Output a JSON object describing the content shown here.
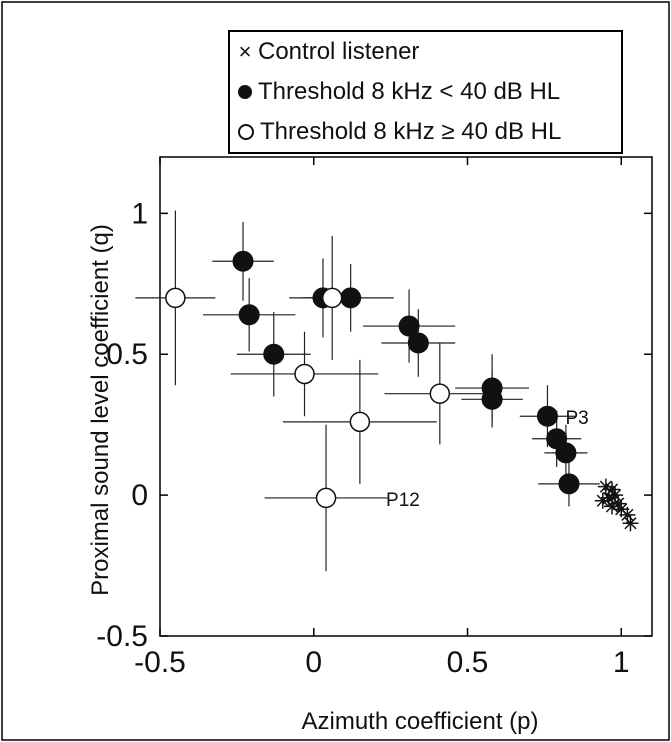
{
  "chart_data": {
    "type": "scatter",
    "title": "",
    "xlabel": "Azimuth coefficient (p)",
    "ylabel": "Proximal sound level coefficient (q)",
    "xlim": [
      -0.5,
      1.1
    ],
    "ylim": [
      -0.5,
      1.2
    ],
    "x_ticks": [
      -0.5,
      0,
      0.5,
      1
    ],
    "y_ticks": [
      -0.5,
      0,
      0.5,
      1
    ],
    "x_tick_labels": [
      "-0.5",
      "0",
      "0.5",
      "1"
    ],
    "y_tick_labels": [
      "-0.5",
      "0",
      "0.5",
      "1"
    ],
    "grid": false,
    "legend_placement": "top",
    "legend": [
      {
        "symbol": "×",
        "marker": "x",
        "label": "Control listener"
      },
      {
        "symbol": "●",
        "marker": "filled",
        "label": "Threshold 8 kHz < 40 dB HL"
      },
      {
        "symbol": "○",
        "marker": "open",
        "label": "Threshold 8 kHz ≥ 40 dB HL"
      }
    ],
    "series": [
      {
        "name": "Control listener",
        "marker": "asterisk",
        "points": [
          {
            "x": 0.95,
            "y": 0.03
          },
          {
            "x": 0.97,
            "y": 0.02
          },
          {
            "x": 0.96,
            "y": -0.01
          },
          {
            "x": 0.98,
            "y": 0.0
          },
          {
            "x": 0.99,
            "y": -0.03
          },
          {
            "x": 1.0,
            "y": -0.05
          },
          {
            "x": 1.02,
            "y": -0.07
          },
          {
            "x": 0.97,
            "y": -0.04
          },
          {
            "x": 1.03,
            "y": -0.1
          },
          {
            "x": 0.94,
            "y": -0.02
          }
        ]
      },
      {
        "name": "Threshold 8 kHz < 40 dB HL",
        "marker": "filled",
        "points": [
          {
            "x": -0.23,
            "y": 0.83,
            "xerr": 0.1,
            "yerr": 0.14
          },
          {
            "x": -0.21,
            "y": 0.64,
            "xerr": 0.15,
            "yerr": 0.13
          },
          {
            "x": -0.13,
            "y": 0.5,
            "xerr": 0.12,
            "yerr": 0.15
          },
          {
            "x": 0.03,
            "y": 0.7,
            "xerr": 0.11,
            "yerr": 0.14
          },
          {
            "x": 0.12,
            "y": 0.7,
            "xerr": 0.14,
            "yerr": 0.12
          },
          {
            "x": 0.31,
            "y": 0.6,
            "xerr": 0.15,
            "yerr": 0.13
          },
          {
            "x": 0.34,
            "y": 0.54,
            "xerr": 0.12,
            "yerr": 0.12
          },
          {
            "x": 0.58,
            "y": 0.38,
            "xerr": 0.12,
            "yerr": 0.12
          },
          {
            "x": 0.58,
            "y": 0.34,
            "xerr": 0.1,
            "yerr": 0.1
          },
          {
            "x": 0.76,
            "y": 0.28,
            "xerr": 0.09,
            "yerr": 0.11,
            "label": "P3"
          },
          {
            "x": 0.79,
            "y": 0.2,
            "xerr": 0.08,
            "yerr": 0.1
          },
          {
            "x": 0.82,
            "y": 0.15,
            "xerr": 0.07,
            "yerr": 0.1
          },
          {
            "x": 0.83,
            "y": 0.04,
            "xerr": 0.1,
            "yerr": 0.08
          }
        ]
      },
      {
        "name": "Threshold 8 kHz ≥ 40 dB HL",
        "marker": "open",
        "points": [
          {
            "x": -0.45,
            "y": 0.7,
            "xerr": 0.13,
            "yerr": 0.31
          },
          {
            "x": -0.03,
            "y": 0.43,
            "xerr": 0.24,
            "yerr": 0.15
          },
          {
            "x": 0.06,
            "y": 0.7,
            "xerr": 0.1,
            "yerr": 0.22
          },
          {
            "x": 0.15,
            "y": 0.26,
            "xerr": 0.25,
            "yerr": 0.22
          },
          {
            "x": 0.41,
            "y": 0.36,
            "xerr": 0.18,
            "yerr": 0.18
          },
          {
            "x": 0.04,
            "y": -0.01,
            "xerr": 0.2,
            "yerr": 0.26,
            "label": "P12"
          }
        ]
      }
    ]
  }
}
